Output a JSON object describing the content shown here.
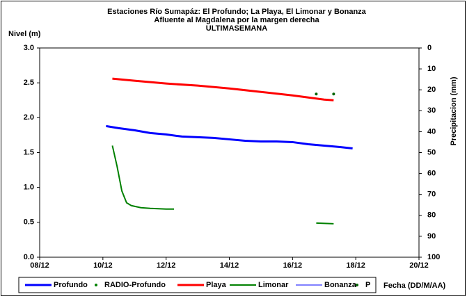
{
  "chart_data": {
    "type": "line",
    "title": "Estaciones Río Sumapáz: El Profundo; La Playa, El Limonar y Bonanza",
    "subtitle": [
      "Afluente al Magdalena por la margen derecha",
      "ULTIMASEMANA"
    ],
    "ylabel": "Nivel (m)",
    "y2label": "Precipitacion (mm)",
    "xlabel": "Fecha (DD/M/AA)",
    "xlim": [
      8,
      20
    ],
    "xticks": [
      {
        "value": 8,
        "label": "08/12"
      },
      {
        "value": 10,
        "label": "10/12"
      },
      {
        "value": 12,
        "label": "12/12"
      },
      {
        "value": 14,
        "label": "14/12"
      },
      {
        "value": 16,
        "label": "16/12"
      },
      {
        "value": 18,
        "label": "18/12"
      },
      {
        "value": 20,
        "label": "20/12"
      }
    ],
    "ylim": [
      0,
      3
    ],
    "yticks": [
      {
        "value": 0,
        "label": "0.0"
      },
      {
        "value": 0.5,
        "label": "0.5"
      },
      {
        "value": 1,
        "label": "1.0"
      },
      {
        "value": 1.5,
        "label": "1.5"
      },
      {
        "value": 2,
        "label": "2.0"
      },
      {
        "value": 2.5,
        "label": "2.5"
      },
      {
        "value": 3,
        "label": "3.0"
      }
    ],
    "y2lim": [
      100,
      0
    ],
    "y2ticks": [
      0,
      10,
      20,
      30,
      40,
      50,
      60,
      70,
      80,
      90,
      100
    ],
    "series": [
      {
        "name": "Profundo",
        "color": "#0000ff",
        "style": "line",
        "line_width": 3,
        "x": [
          10.1,
          10.5,
          11,
          11.5,
          12,
          12.5,
          13,
          13.5,
          14,
          14.5,
          15,
          15.5,
          16,
          16.5,
          17,
          17.5,
          17.9
        ],
        "values": [
          1.88,
          1.85,
          1.82,
          1.78,
          1.76,
          1.73,
          1.72,
          1.71,
          1.69,
          1.67,
          1.66,
          1.66,
          1.65,
          1.62,
          1.6,
          1.58,
          1.56
        ]
      },
      {
        "name": "RADIO-Profundo",
        "color": "#008000",
        "style": "points",
        "x": [],
        "values": []
      },
      {
        "name": "Playa",
        "color": "#ff0000",
        "style": "line",
        "line_width": 3,
        "x": [
          10.3,
          11,
          12,
          13,
          14,
          15,
          16,
          16.5,
          17,
          17.3
        ],
        "values": [
          2.56,
          2.53,
          2.49,
          2.46,
          2.42,
          2.37,
          2.32,
          2.29,
          2.26,
          2.25
        ]
      },
      {
        "name": "Limonar",
        "color": "#008000",
        "style": "line",
        "line_width": 2,
        "x": [
          10.3,
          10.45,
          10.6,
          10.75,
          10.9,
          11.2,
          11.5,
          12,
          12.25,
          null,
          16.75,
          17.3
        ],
        "values": [
          1.6,
          1.3,
          0.95,
          0.78,
          0.74,
          0.71,
          0.7,
          0.69,
          0.69,
          null,
          0.49,
          0.48
        ]
      },
      {
        "name": "Bonanza",
        "color": "#0000ff",
        "style": "line",
        "line_width": 1,
        "x": [],
        "values": []
      },
      {
        "name": "P",
        "color": "#006400",
        "style": "points",
        "axis": "y2",
        "x": [
          16.75,
          17.3
        ],
        "values": [
          22,
          22
        ]
      }
    ]
  }
}
